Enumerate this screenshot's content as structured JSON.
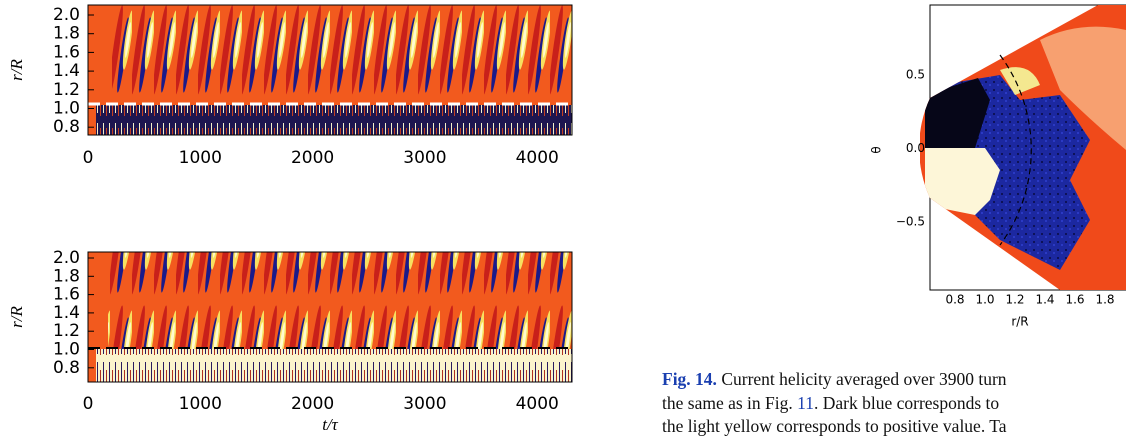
{
  "left_panels": [
    {
      "ylabel": "r/R",
      "yticks": [
        "2.0",
        "1.8",
        "1.6",
        "1.4",
        "1.2",
        "1.0",
        "0.8"
      ],
      "xticks": [
        "0",
        "1000",
        "2000",
        "3000",
        "4000"
      ]
    },
    {
      "ylabel": "r/R",
      "yticks": [
        "2.0",
        "1.8",
        "1.6",
        "1.4",
        "1.2",
        "1.0",
        "0.8"
      ],
      "xticks": [
        "0",
        "1000",
        "2000",
        "3000",
        "4000"
      ],
      "xlabel": "t/τ"
    }
  ],
  "right_panel": {
    "ylabel": "θ",
    "yticks": [
      "0.5",
      "0.0",
      "−0.5"
    ],
    "xticks": [
      "0.8",
      "1.0",
      "1.2",
      "1.4",
      "1.6",
      "1.8"
    ],
    "xlabel": "r/R"
  },
  "caption": {
    "label": "Fig. 14.",
    "line1": "Current helicity averaged over 3900 turn",
    "line2_start": "the same as in Fig. ",
    "line2_link": "11",
    "line2_end": ". Dark blue corresponds to",
    "line3": "the light yellow corresponds to positive value. Ta"
  }
}
